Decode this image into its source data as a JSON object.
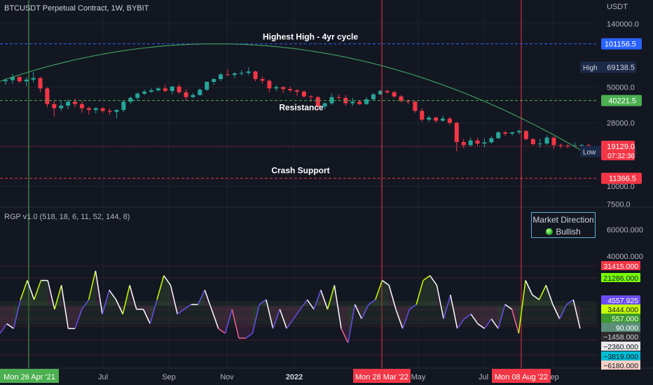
{
  "header": {
    "symbol_title": "BTCUSDT Perpetual Contract, 1W, BYBIT",
    "currency": "USDT"
  },
  "indicator": {
    "title": "RGP v1.0 (518, 18, 6, 11, 52, 144, 8)"
  },
  "panel": {
    "title": "Market Direction",
    "status": "Bullish"
  },
  "colors": {
    "background": "#131722",
    "up": "#26a69a",
    "down": "#f23645",
    "blue_line": "#2962ff",
    "green_line": "#4caf50",
    "red_line": "#f23645",
    "curve": "#3d9a5c"
  },
  "chart_data": [
    {
      "type": "candlestick",
      "title": "BTCUSDT Perpetual Contract, 1W, BYBIT",
      "y_scale": "log",
      "ylim": [
        7500,
        150000
      ],
      "y_ticks": [
        "140000.0",
        "50000.0",
        "28000.0",
        "10000.0",
        "7500.0"
      ],
      "x_ticks": [
        "Jul",
        "Sep",
        "Nov",
        "2022",
        "May",
        "Jul",
        "Sep"
      ],
      "x_date_labels": [
        "Mon 26 Apr '21",
        "Mon 28 Mar '22",
        "Mon 08 Aug '22"
      ],
      "ohlc": [
        [
          55000,
          58000,
          52000,
          56000
        ],
        [
          56000,
          62000,
          53000,
          59000
        ],
        [
          59000,
          60000,
          53500,
          55000
        ],
        [
          55000,
          58500,
          51000,
          56500
        ],
        [
          56500,
          64000,
          54000,
          58000
        ],
        [
          58000,
          59000,
          46000,
          49000
        ],
        [
          49000,
          50000,
          36000,
          38000
        ],
        [
          38000,
          40500,
          31000,
          35500
        ],
        [
          35500,
          40000,
          34000,
          37000
        ],
        [
          37000,
          41000,
          35000,
          39500
        ],
        [
          39500,
          41500,
          36000,
          38000
        ],
        [
          38000,
          40000,
          33000,
          35500
        ],
        [
          35500,
          36500,
          32000,
          34500
        ],
        [
          34500,
          36000,
          32500,
          35500
        ],
        [
          35500,
          36200,
          33000,
          34000
        ],
        [
          34000,
          35500,
          31800,
          33500
        ],
        [
          33500,
          35000,
          30000,
          34500
        ],
        [
          34500,
          40000,
          33500,
          39500
        ],
        [
          39500,
          43000,
          38000,
          42000
        ],
        [
          42000,
          46000,
          40000,
          45000
        ],
        [
          45000,
          48000,
          44000,
          46500
        ],
        [
          46500,
          49000,
          45500,
          47500
        ],
        [
          47500,
          50000,
          46500,
          49000
        ],
        [
          49000,
          52000,
          46000,
          47000
        ],
        [
          47000,
          51000,
          44500,
          50500
        ],
        [
          50500,
          52500,
          45000,
          46000
        ],
        [
          46000,
          48500,
          40000,
          42500
        ],
        [
          42500,
          45500,
          42000,
          44000
        ],
        [
          44000,
          49000,
          43500,
          48000
        ],
        [
          48000,
          55000,
          47000,
          54500
        ],
        [
          54500,
          58000,
          52000,
          57000
        ],
        [
          57000,
          63000,
          55000,
          61500
        ],
        [
          61500,
          67000,
          60000,
          61000
        ],
        [
          61000,
          64000,
          58000,
          62500
        ],
        [
          62500,
          66000,
          60500,
          63000
        ],
        [
          63000,
          69138.5,
          61000,
          64500
        ],
        [
          64500,
          65500,
          55000,
          57000
        ],
        [
          57000,
          59500,
          53000,
          55500
        ],
        [
          55500,
          56500,
          46000,
          49000
        ],
        [
          49000,
          51500,
          47000,
          50000
        ],
        [
          50000,
          51000,
          45500,
          48500
        ],
        [
          48500,
          50500,
          46000,
          47500
        ],
        [
          47500,
          48500,
          43500,
          46500
        ],
        [
          46500,
          47500,
          42000,
          43000
        ],
        [
          43000,
          44000,
          39500,
          42500
        ],
        [
          42500,
          43500,
          34000,
          36500
        ],
        [
          36500,
          39000,
          35000,
          38500
        ],
        [
          38500,
          45000,
          37500,
          42500
        ],
        [
          42500,
          44500,
          41000,
          42000
        ],
        [
          42000,
          44000,
          37000,
          38500
        ],
        [
          38500,
          42000,
          37000,
          39500
        ],
        [
          39500,
          40500,
          37500,
          38000
        ],
        [
          38000,
          42500,
          37500,
          41000
        ],
        [
          41000,
          45500,
          40000,
          44500
        ],
        [
          44500,
          48000,
          44000,
          47000
        ],
        [
          47000,
          48200,
          45000,
          46000
        ],
        [
          46000,
          47000,
          42000,
          43000
        ],
        [
          43000,
          44000,
          39000,
          40000
        ],
        [
          40000,
          41000,
          38000,
          39500
        ],
        [
          39500,
          40000,
          33000,
          34000
        ],
        [
          34000,
          35500,
          28500,
          29500
        ],
        [
          29500,
          31500,
          28500,
          30500
        ],
        [
          30500,
          31000,
          28000,
          29000
        ],
        [
          29000,
          31500,
          28500,
          30000
        ],
        [
          30000,
          31000,
          27000,
          28000
        ],
        [
          28000,
          28500,
          17600,
          20500
        ],
        [
          20500,
          21500,
          18500,
          19500
        ],
        [
          19500,
          22000,
          19000,
          21000
        ],
        [
          21000,
          22000,
          19200,
          20000
        ],
        [
          20000,
          21700,
          18800,
          20400
        ],
        [
          20400,
          22500,
          20000,
          21800
        ],
        [
          21800,
          24500,
          21500,
          24000
        ],
        [
          24000,
          24500,
          22500,
          23500
        ],
        [
          23500,
          24200,
          22800,
          24000
        ],
        [
          24000,
          25200,
          23200,
          24500
        ],
        [
          24500,
          25000,
          21000,
          21500
        ],
        [
          21500,
          21800,
          19500,
          19800
        ],
        [
          19800,
          21500,
          18700,
          20000
        ],
        [
          20000,
          22800,
          19500,
          22000
        ],
        [
          22000,
          22500,
          18300,
          19500
        ],
        [
          19500,
          20000,
          18500,
          19300
        ],
        [
          19300,
          19800,
          18500,
          19200
        ],
        [
          19200,
          20300,
          19000,
          19400
        ],
        [
          19400,
          20000,
          18800,
          19500
        ],
        [
          19500,
          20000,
          18900,
          19129
        ]
      ],
      "horizontal_lines": [
        {
          "label": "Highest High  - 4yr cycle",
          "value": 101156.5,
          "value_label": "101156.5",
          "color": "#2962ff"
        },
        {
          "label": "Resistance",
          "value": 40221.5,
          "value_label": "40221.5",
          "color": "#4caf50"
        },
        {
          "label": "Crash Support",
          "value": 11366.5,
          "value_label": "11366.5",
          "color": "#f23645"
        }
      ],
      "price_labels": [
        {
          "prefix": "High",
          "value": 69138.5,
          "value_label": "69138.5"
        },
        {
          "prefix": "Low",
          "value": 17600.0,
          "value_label": "17600.0"
        },
        {
          "value": 19129.0,
          "value_label": "19129.0",
          "countdown": "07:32:36"
        }
      ],
      "curve": {
        "from": 55000,
        "peak": 101156.5,
        "to": 17600
      }
    },
    {
      "type": "line",
      "title": "RGP v1.0 (518, 18, 6, 11, 52, 144, 8)",
      "y_ticks": [
        "60000.000",
        "40000.000"
      ],
      "value_tags": [
        {
          "label": "31415.000",
          "bg": "#f23645",
          "fg": "#ffffff"
        },
        {
          "label": "21286.000",
          "bg": "#76ff03",
          "fg": "#131722"
        },
        {
          "label": "4557.925",
          "bg": "#6a4cf0",
          "fg": "#ffffff"
        },
        {
          "label": "3444.000",
          "bg": "#c6ff00",
          "fg": "#131722"
        },
        {
          "label": "557.000",
          "bg": "#3d9a2e",
          "fg": "#ffffff"
        },
        {
          "label": "90.000",
          "bg": "#5b8f7a",
          "fg": "#ffffff"
        },
        {
          "label": "−1458.000",
          "bg": "#2e2e2e",
          "fg": "#d1d4dc"
        },
        {
          "label": "−2360.000",
          "bg": "#e8e8e8",
          "fg": "#131722"
        },
        {
          "label": "−3819.000",
          "bg": "#00bcd4",
          "fg": "#131722"
        },
        {
          "label": "−6180.000",
          "bg": "#f7d2c4",
          "fg": "#131722"
        }
      ],
      "levels": [
        31415,
        21286,
        3444,
        557,
        -2360,
        -3819,
        -6180
      ],
      "values": [
        2300,
        2400,
        2350,
        2650,
        2850,
        2650,
        2850,
        2850,
        2550,
        2800,
        2350,
        2350,
        2550,
        2650,
        2950,
        2500,
        2750,
        2650,
        2500,
        2800,
        2550,
        2550,
        2400,
        2650,
        2900,
        2800,
        2500,
        2550,
        2600,
        2600,
        2750,
        2550,
        2350,
        2300,
        2550,
        2250,
        2250,
        2300,
        2600,
        2650,
        2350,
        2550,
        2350,
        2450,
        2550,
        2650,
        2550,
        2750,
        2550,
        2800,
        2350,
        2200,
        2600,
        2450,
        2600,
        2650,
        2850,
        2800,
        2550,
        2350,
        2550,
        2600,
        2850,
        2900,
        2800,
        2450,
        2700,
        2350,
        2450,
        2500,
        2400,
        2350,
        2450,
        2350,
        2600,
        2550,
        2300,
        2850,
        2700,
        2650,
        2800,
        2600,
        2450,
        2600,
        2650,
        2350
      ]
    }
  ]
}
